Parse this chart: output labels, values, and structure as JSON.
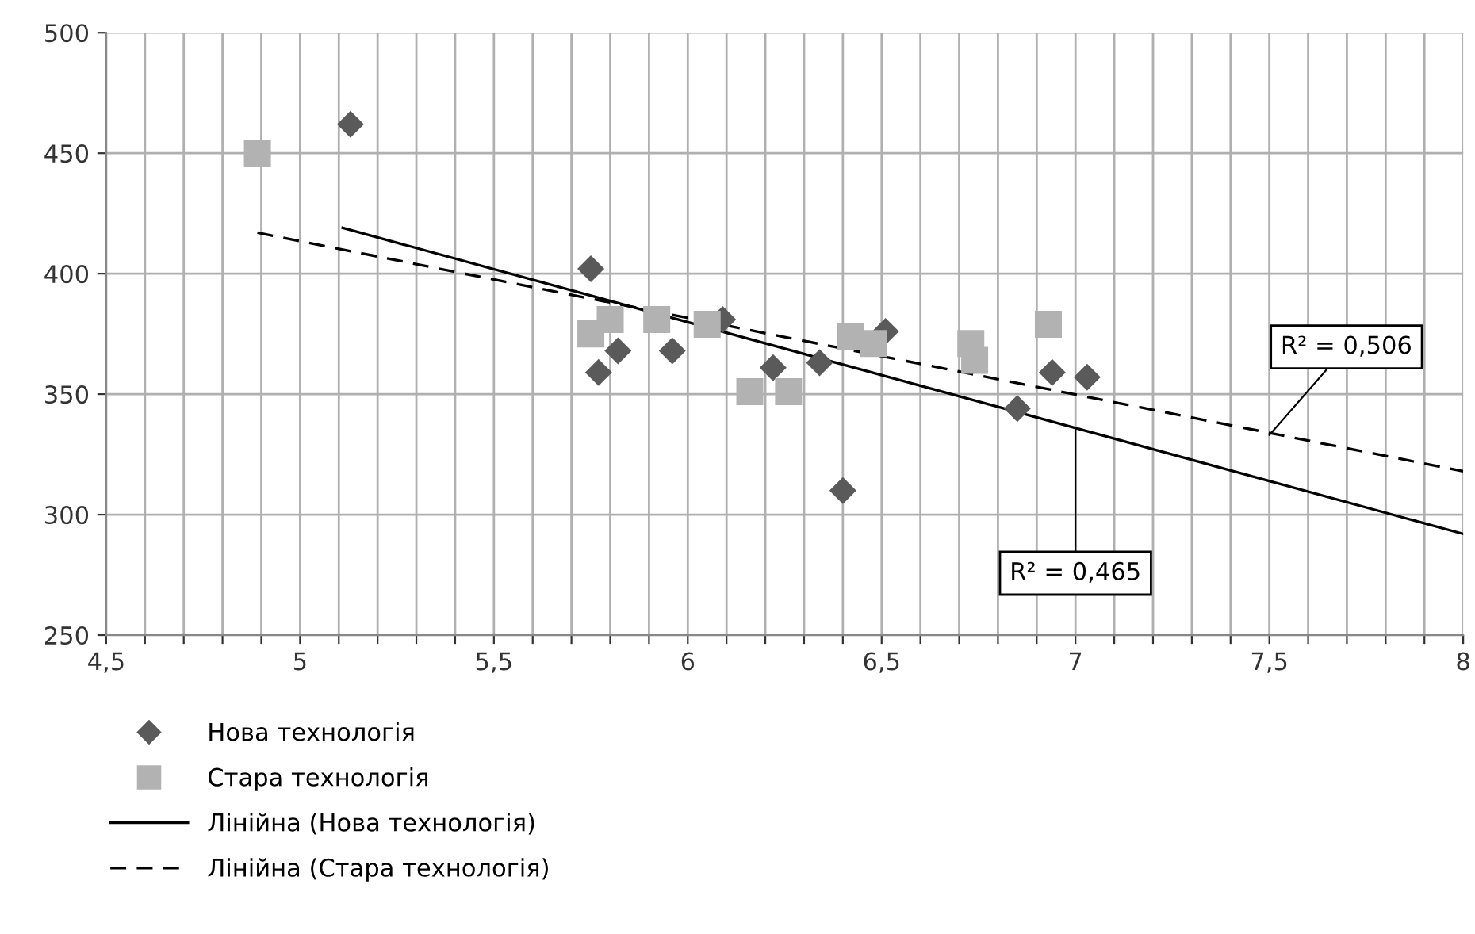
{
  "chart_data": {
    "type": "scatter",
    "xlim": [
      4.5,
      8
    ],
    "ylim": [
      250,
      500
    ],
    "xticks": [
      {
        "value": 4.5,
        "label": "4,5"
      },
      {
        "value": 4.6,
        "label": null
      },
      {
        "value": 4.7,
        "label": null
      },
      {
        "value": 4.8,
        "label": null
      },
      {
        "value": 4.9,
        "label": null
      },
      {
        "value": 5,
        "label": "5"
      },
      {
        "value": 5.1,
        "label": null
      },
      {
        "value": 5.2,
        "label": null
      },
      {
        "value": 5.3,
        "label": null
      },
      {
        "value": 5.4,
        "label": null
      },
      {
        "value": 5.5,
        "label": "5,5"
      },
      {
        "value": 5.6,
        "label": null
      },
      {
        "value": 5.7,
        "label": null
      },
      {
        "value": 5.8,
        "label": null
      },
      {
        "value": 5.9,
        "label": null
      },
      {
        "value": 6,
        "label": "6"
      },
      {
        "value": 6.1,
        "label": null
      },
      {
        "value": 6.2,
        "label": null
      },
      {
        "value": 6.3,
        "label": null
      },
      {
        "value": 6.4,
        "label": null
      },
      {
        "value": 6.5,
        "label": "6,5"
      },
      {
        "value": 6.6,
        "label": null
      },
      {
        "value": 6.7,
        "label": null
      },
      {
        "value": 6.8,
        "label": null
      },
      {
        "value": 6.9,
        "label": null
      },
      {
        "value": 7,
        "label": "7"
      },
      {
        "value": 7.1,
        "label": null
      },
      {
        "value": 7.2,
        "label": null
      },
      {
        "value": 7.3,
        "label": null
      },
      {
        "value": 7.4,
        "label": null
      },
      {
        "value": 7.5,
        "label": "7,5"
      },
      {
        "value": 7.6,
        "label": null
      },
      {
        "value": 7.7,
        "label": null
      },
      {
        "value": 7.8,
        "label": null
      },
      {
        "value": 7.9,
        "label": null
      },
      {
        "value": 8,
        "label": "8"
      }
    ],
    "yticks": [
      250,
      300,
      350,
      400,
      450,
      500
    ],
    "grid": true,
    "legend": "bottom",
    "series": [
      {
        "name": "Нова технологія",
        "marker": "diamond",
        "color": "#5a5a5a",
        "x": [
          5.13,
          5.75,
          5.77,
          5.82,
          5.96,
          6.09,
          6.22,
          6.34,
          6.4,
          6.51,
          6.85,
          6.94,
          7.03
        ],
        "values": [
          462,
          402,
          359,
          368,
          368,
          381,
          361,
          363,
          310,
          376,
          344,
          359,
          357
        ]
      },
      {
        "name": "Стара технологія",
        "marker": "square",
        "color": "#b2b2b2",
        "x": [
          4.89,
          5.75,
          5.8,
          5.92,
          6.05,
          6.16,
          6.26,
          6.42,
          6.48,
          6.73,
          6.74,
          6.93
        ],
        "values": [
          450,
          375,
          381,
          381,
          379,
          351,
          351,
          374,
          371,
          371,
          364,
          379
        ]
      },
      {
        "name": "Лінійна (Нова технологія)",
        "type": "line",
        "line_style": "solid",
        "color": "#000000",
        "x": [
          5.11,
          8
        ],
        "values": [
          419,
          292
        ]
      },
      {
        "name": "Лінійна (Стара технологія)",
        "type": "line",
        "line_style": "dashed",
        "color": "#000000",
        "x": [
          4.89,
          8
        ],
        "values": [
          417,
          318
        ]
      }
    ],
    "annotations": [
      {
        "text": "R² = 0,506",
        "x": 7.5,
        "y": 333
      },
      {
        "text": "R² = 0,465",
        "x": 7.0,
        "y": 336
      }
    ]
  }
}
